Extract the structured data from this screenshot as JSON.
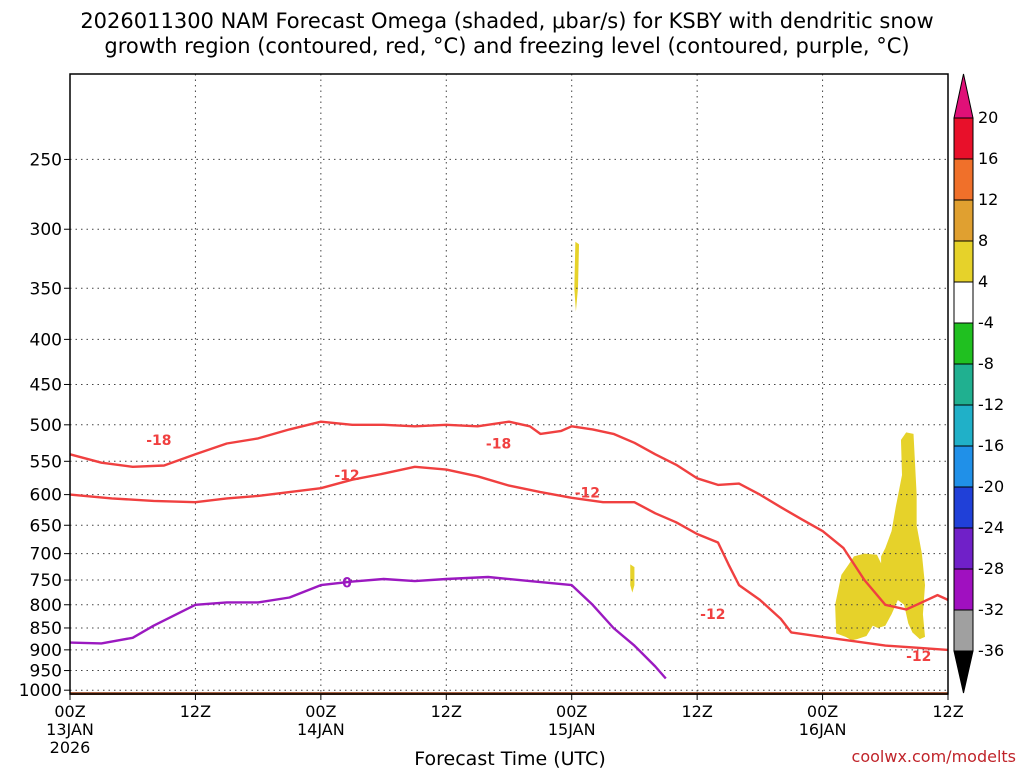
{
  "chart_data": {
    "type": "time-height",
    "title_line1": "2026011300 NAM Forecast Omega (shaded, μbar/s) for KSBY with dendritic snow",
    "title_line2": "growth region (contoured, red, °C) and freezing level (contoured, purple, °C)",
    "xlabel": "Forecast Time (UTC)",
    "credit": "coolwx.com/modelts",
    "x_range_hours": [
      0,
      84
    ],
    "y_axis": {
      "scale": "log-pressure",
      "range_hPa": [
        1010,
        200
      ],
      "ticks": [
        250,
        300,
        350,
        400,
        450,
        500,
        550,
        600,
        650,
        700,
        750,
        800,
        850,
        900,
        950,
        1000
      ]
    },
    "x_ticks": [
      {
        "hour": 0,
        "label1": "00Z",
        "label2": "13JAN",
        "label3": "2026"
      },
      {
        "hour": 12,
        "label1": "12Z",
        "label2": "",
        "label3": ""
      },
      {
        "hour": 24,
        "label1": "00Z",
        "label2": "14JAN",
        "label3": ""
      },
      {
        "hour": 36,
        "label1": "12Z",
        "label2": "",
        "label3": ""
      },
      {
        "hour": 48,
        "label1": "00Z",
        "label2": "15JAN",
        "label3": ""
      },
      {
        "hour": 60,
        "label1": "12Z",
        "label2": "",
        "label3": ""
      },
      {
        "hour": 72,
        "label1": "00Z",
        "label2": "16JAN",
        "label3": ""
      },
      {
        "hour": 84,
        "label1": "12Z",
        "label2": "",
        "label3": ""
      }
    ],
    "grid": "dotted",
    "colorbar": {
      "labels": [
        "20",
        "16",
        "12",
        "8",
        "4",
        "-4",
        "-8",
        "-12",
        "-16",
        "-20",
        "-24",
        "-28",
        "-32",
        "-36"
      ],
      "colors": [
        "#e8102a",
        "#f0702a",
        "#e0a030",
        "#e6d22a",
        "#ffffff",
        "#20c020",
        "#20b090",
        "#20b0c8",
        "#2090e8",
        "#2040d8",
        "#7020c8",
        "#a010c0",
        "#a0a0a0"
      ],
      "top_arrow_color": "#e01078",
      "bottom_arrow_color": "#000000"
    },
    "omega_shading": [
      {
        "range": "4 to 8",
        "color": "#e6d22a",
        "area": "350–310 hPa near hour 48.5"
      },
      {
        "range": "4 to 8",
        "color": "#e6d22a",
        "area": "720–770 hPa near hour 53.8"
      },
      {
        "range": "4 to 8",
        "color": "#e6d22a",
        "area": "510–880 hPa, hours 73–81"
      }
    ],
    "terrain": {
      "color": "#a0522d",
      "top_hPa": 1005
    },
    "contours": [
      {
        "name": "-18",
        "color": "#f04040",
        "points": [
          [
            0,
            540
          ],
          [
            3,
            552
          ],
          [
            6,
            558
          ],
          [
            9,
            556
          ],
          [
            12,
            540
          ],
          [
            15,
            525
          ],
          [
            18,
            518
          ],
          [
            21,
            506
          ],
          [
            24,
            496
          ],
          [
            27,
            500
          ],
          [
            30,
            500
          ],
          [
            33,
            502
          ],
          [
            36,
            500
          ],
          [
            39,
            502
          ],
          [
            42,
            496
          ],
          [
            44,
            502
          ],
          [
            45,
            512
          ],
          [
            47,
            508
          ],
          [
            48,
            502
          ],
          [
            50,
            506
          ],
          [
            52,
            512
          ],
          [
            54,
            524
          ],
          [
            56,
            540
          ],
          [
            58,
            555
          ],
          [
            60,
            575
          ],
          [
            62,
            585
          ],
          [
            64,
            583
          ],
          [
            66,
            600
          ],
          [
            68,
            620
          ],
          [
            70,
            640
          ],
          [
            72,
            660
          ],
          [
            74,
            690
          ],
          [
            76,
            750
          ],
          [
            78,
            800
          ],
          [
            80,
            810
          ],
          [
            81,
            800
          ],
          [
            83,
            780
          ],
          [
            84,
            790
          ]
        ],
        "labels": [
          {
            "x": 8.5,
            "p": 520,
            "text": "-18"
          },
          {
            "x": 41,
            "p": 525,
            "text": "-18"
          }
        ]
      },
      {
        "name": "-12",
        "color": "#f04040",
        "points": [
          [
            0,
            600
          ],
          [
            4,
            606
          ],
          [
            8,
            610
          ],
          [
            12,
            612
          ],
          [
            15,
            606
          ],
          [
            18,
            602
          ],
          [
            21,
            596
          ],
          [
            24,
            590
          ],
          [
            27,
            577
          ],
          [
            30,
            568
          ],
          [
            33,
            558
          ],
          [
            36,
            562
          ],
          [
            39,
            572
          ],
          [
            42,
            586
          ],
          [
            45,
            596
          ],
          [
            48,
            605
          ],
          [
            51,
            612
          ],
          [
            54,
            612
          ],
          [
            56,
            630
          ],
          [
            58,
            645
          ],
          [
            60,
            665
          ],
          [
            62,
            680
          ],
          [
            63,
            720
          ],
          [
            64,
            760
          ],
          [
            66,
            790
          ],
          [
            68,
            830
          ],
          [
            69,
            860
          ],
          [
            72,
            870
          ],
          [
            75,
            880
          ],
          [
            78,
            890
          ],
          [
            81,
            895
          ],
          [
            84,
            900
          ]
        ],
        "labels": [
          {
            "x": 26.5,
            "p": 570,
            "text": "-12"
          },
          {
            "x": 49.5,
            "p": 597,
            "text": "-12"
          },
          {
            "x": 61.5,
            "p": 820,
            "text": "-12"
          },
          {
            "x": 81.2,
            "p": 915,
            "text": "-12"
          }
        ]
      },
      {
        "name": "0",
        "color": "#9b19c0",
        "points": [
          [
            0,
            883
          ],
          [
            3,
            885
          ],
          [
            6,
            872
          ],
          [
            8,
            845
          ],
          [
            12,
            800
          ],
          [
            15,
            795
          ],
          [
            18,
            795
          ],
          [
            21,
            785
          ],
          [
            24,
            760
          ],
          [
            27,
            753
          ],
          [
            30,
            748
          ],
          [
            33,
            752
          ],
          [
            36,
            748
          ],
          [
            40,
            744
          ],
          [
            44,
            752
          ],
          [
            48,
            760
          ],
          [
            50,
            800
          ],
          [
            52,
            850
          ],
          [
            54,
            890
          ],
          [
            56,
            940
          ],
          [
            57,
            970
          ]
        ],
        "labels": [
          {
            "x": 26.5,
            "p": 755,
            "text": "0"
          }
        ]
      }
    ]
  }
}
